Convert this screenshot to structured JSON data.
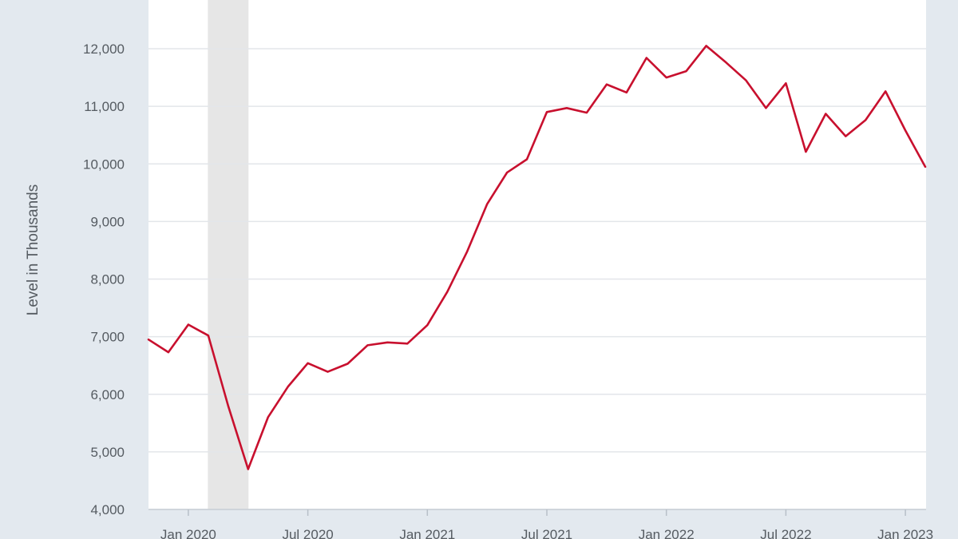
{
  "chart_data": {
    "type": "line",
    "title": "",
    "xlabel": "",
    "ylabel": "Level in Thousands",
    "ylim": [
      4000,
      12600
    ],
    "yticks": [
      4000,
      5000,
      6000,
      7000,
      8000,
      9000,
      10000,
      11000,
      12000
    ],
    "ytick_labels": [
      "4,000",
      "5,000",
      "6,000",
      "7,000",
      "8,000",
      "9,000",
      "10,000",
      "11,000",
      "12,000"
    ],
    "xlim": [
      "2019-11",
      "2023-03"
    ],
    "xticks": [
      "2020-01",
      "2020-07",
      "2021-01",
      "2021-07",
      "2022-01",
      "2022-07",
      "2023-01"
    ],
    "xtick_labels": [
      "Jan 2020",
      "Jul 2020",
      "Jan 2021",
      "Jul 2021",
      "Jan 2022",
      "Jul 2022",
      "Jan 2023"
    ],
    "grid": true,
    "legend": "none",
    "recession_shading": {
      "start": "2020-02",
      "end": "2020-04",
      "color": "#e6e6e6"
    },
    "colors": {
      "line": "#c8102e",
      "plot_background": "#ffffff",
      "page_background": "#e3e9ef",
      "gridline": "#e3e6ea",
      "text": "#555b61"
    },
    "series": [
      {
        "x": [
          "2019-11",
          "2019-12",
          "2020-01",
          "2020-02",
          "2020-03",
          "2020-04",
          "2020-05",
          "2020-06",
          "2020-07",
          "2020-08",
          "2020-09",
          "2020-10",
          "2020-11",
          "2020-12",
          "2021-01",
          "2021-02",
          "2021-03",
          "2021-04",
          "2021-05",
          "2021-06",
          "2021-07",
          "2021-08",
          "2021-09",
          "2021-10",
          "2021-11",
          "2021-12",
          "2022-01",
          "2022-02",
          "2022-03",
          "2022-04",
          "2022-05",
          "2022-06",
          "2022-07",
          "2022-08",
          "2022-09",
          "2022-10",
          "2022-11",
          "2022-12",
          "2023-01",
          "2023-02"
        ],
        "values": [
          6950,
          6730,
          7210,
          7020,
          5800,
          4700,
          5600,
          6130,
          6540,
          6390,
          6530,
          6850,
          6900,
          6880,
          7200,
          7780,
          8480,
          9300,
          9850,
          10080,
          10900,
          10970,
          10890,
          11380,
          11240,
          11840,
          11500,
          11610,
          12050,
          11760,
          11450,
          10970,
          11400,
          10210,
          10870,
          10480,
          10760,
          11260,
          10580,
          9950
        ]
      }
    ]
  }
}
